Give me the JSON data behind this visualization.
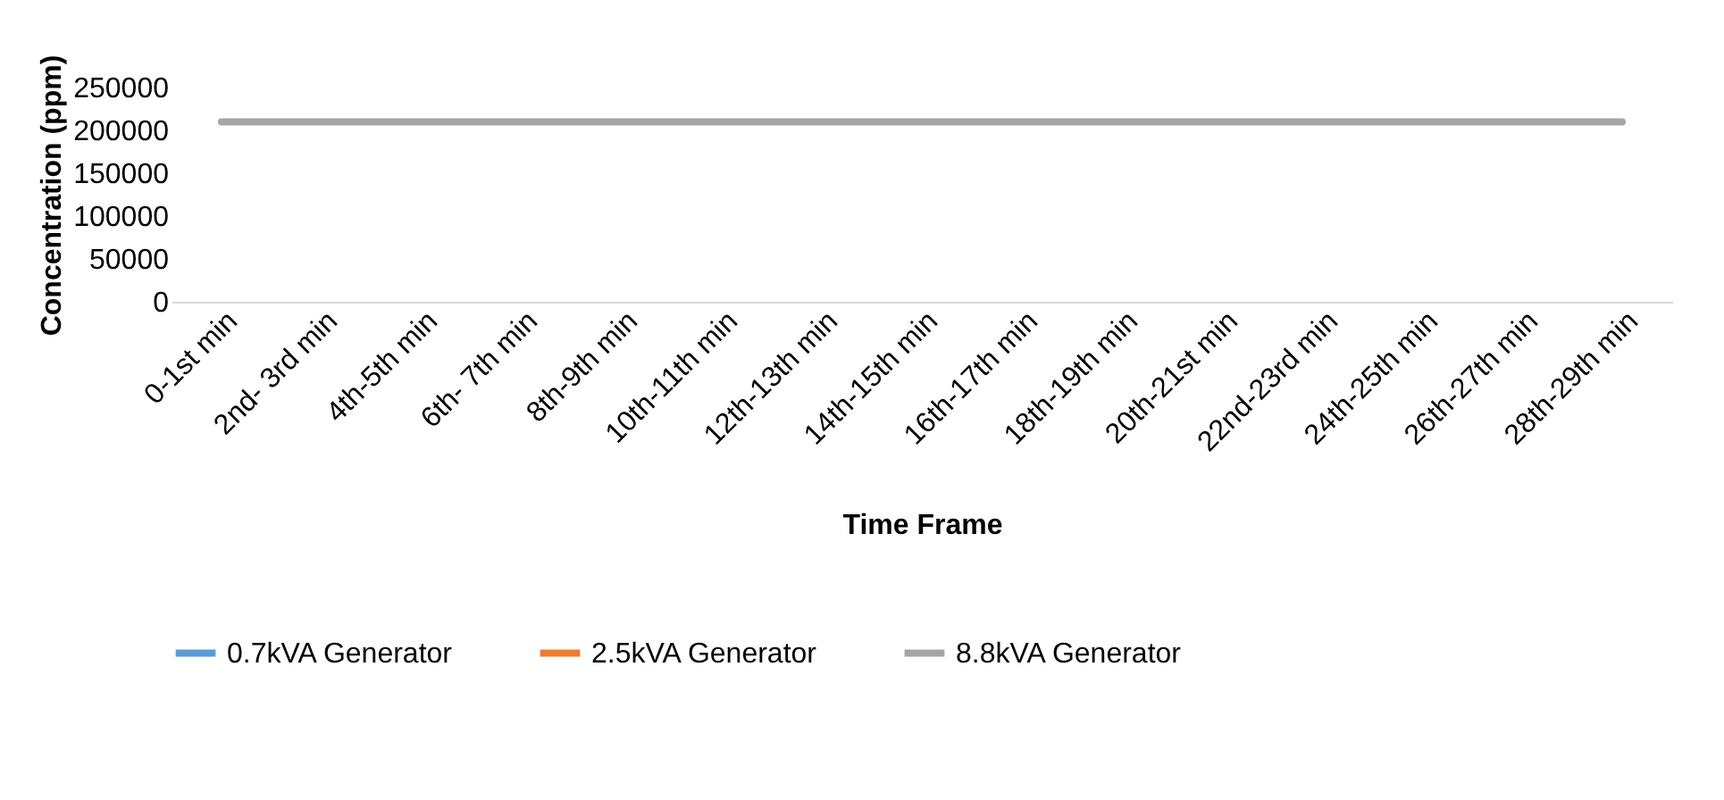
{
  "chart_data": {
    "type": "line",
    "xlabel": "Time Frame",
    "ylabel": "Concentration (ppm)",
    "categories": [
      "0-1st min",
      "2nd- 3rd min",
      "4th-5th min",
      "6th- 7th min",
      "8th-9th min",
      "10th-11th min",
      "12th-13th min",
      "14th-15th min",
      "16th-17th min",
      "18th-19th min",
      "20th-21st min",
      "22nd-23rd min",
      "24th-25th min",
      "26th-27th min",
      "28th-29th min"
    ],
    "series": [
      {
        "name": "0.7kVA Generator",
        "color": "#5b9bd5",
        "values": [
          null,
          null,
          null,
          null,
          null,
          null,
          null,
          null,
          null,
          null,
          null,
          null,
          null,
          null,
          null
        ]
      },
      {
        "name": "2.5kVA Generator",
        "color": "#ed7d31",
        "values": [
          null,
          null,
          null,
          null,
          null,
          null,
          null,
          null,
          null,
          null,
          null,
          null,
          null,
          null,
          null
        ]
      },
      {
        "name": "8.8kVA Generator",
        "color": "#a5a5a5",
        "values": [
          210000,
          210000,
          210000,
          210000,
          210000,
          210000,
          210000,
          210000,
          210000,
          210000,
          210000,
          210000,
          210000,
          210000,
          210000
        ]
      }
    ],
    "ylim": [
      0,
      250000
    ],
    "yticks": [
      0,
      50000,
      100000,
      150000,
      200000,
      250000
    ],
    "grid": false,
    "legend": "bottom"
  }
}
